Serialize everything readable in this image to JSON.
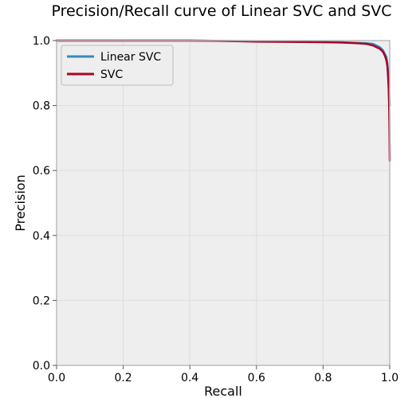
{
  "chart_data": {
    "type": "line",
    "title": "Precision/Recall curve of Linear SVC and SVC",
    "xlabel": "Recall",
    "ylabel": "Precision",
    "xlim": [
      0.0,
      1.0
    ],
    "ylim": [
      0.0,
      1.0
    ],
    "xticks": [
      "0.0",
      "0.2",
      "0.4",
      "0.6",
      "0.8",
      "1.0"
    ],
    "yticks": [
      "0.0",
      "0.2",
      "0.4",
      "0.6",
      "0.8",
      "1.0"
    ],
    "grid": true,
    "legend_position": "top-left",
    "series": [
      {
        "name": "Linear SVC",
        "color": "#348ABD",
        "x": [
          0.0,
          0.1,
          0.2,
          0.3,
          0.4,
          0.5,
          0.6,
          0.7,
          0.8,
          0.85,
          0.9,
          0.93,
          0.95,
          0.96,
          0.97,
          0.98,
          0.985,
          0.99,
          0.993,
          0.995,
          0.997,
          0.998,
          1.0
        ],
        "y": [
          1.0,
          1.0,
          1.0,
          1.0,
          1.0,
          0.999,
          0.998,
          0.997,
          0.996,
          0.995,
          0.993,
          0.992,
          0.99,
          0.985,
          0.98,
          0.97,
          0.96,
          0.95,
          0.93,
          0.91,
          0.88,
          0.85,
          0.8
        ]
      },
      {
        "name": "SVC",
        "color": "#A60628",
        "x": [
          0.0,
          0.1,
          0.2,
          0.3,
          0.4,
          0.5,
          0.6,
          0.7,
          0.8,
          0.85,
          0.9,
          0.93,
          0.95,
          0.96,
          0.97,
          0.98,
          0.985,
          0.99,
          0.993,
          0.995,
          0.997,
          0.998,
          0.999,
          1.0
        ],
        "y": [
          1.0,
          1.0,
          1.0,
          1.0,
          1.0,
          0.999,
          0.997,
          0.996,
          0.995,
          0.994,
          0.992,
          0.99,
          0.985,
          0.98,
          0.975,
          0.965,
          0.955,
          0.94,
          0.92,
          0.89,
          0.85,
          0.8,
          0.74,
          0.63
        ]
      }
    ]
  },
  "colors": {
    "plot_background": "#EEEEEE",
    "grid": "#DDDDDD",
    "frame": "#BCBCBC"
  }
}
